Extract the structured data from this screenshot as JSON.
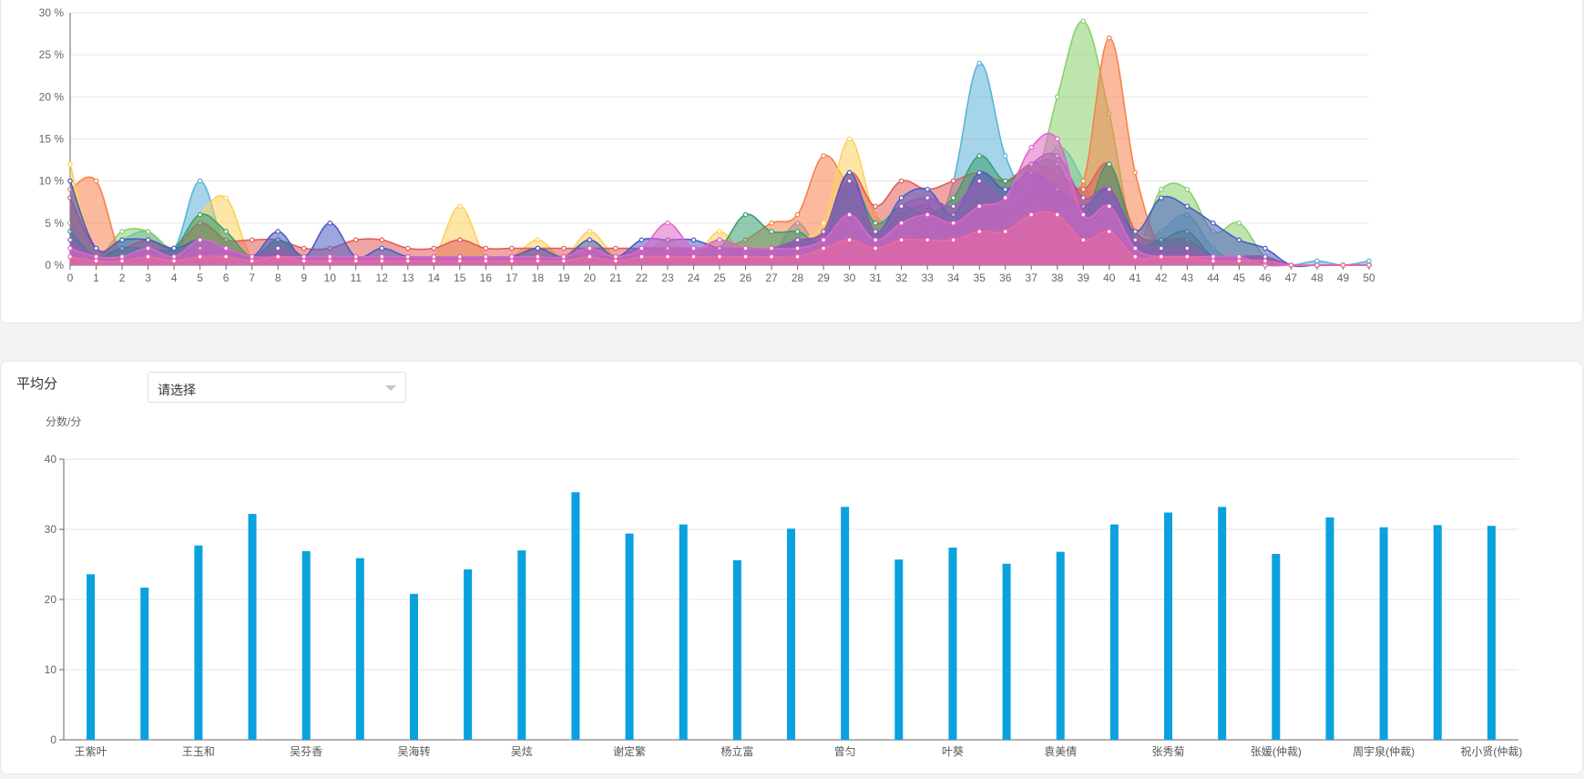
{
  "panels": {
    "average": {
      "label": "平均分",
      "select": {
        "value": "请选择"
      }
    }
  },
  "chart_data": [
    {
      "type": "area",
      "x": [
        0,
        1,
        2,
        3,
        4,
        5,
        6,
        7,
        8,
        9,
        10,
        11,
        12,
        13,
        14,
        15,
        16,
        17,
        18,
        19,
        20,
        21,
        22,
        23,
        24,
        25,
        26,
        27,
        28,
        29,
        30,
        31,
        32,
        33,
        34,
        35,
        36,
        37,
        38,
        39,
        40,
        41,
        42,
        43,
        44,
        45,
        46,
        47,
        48,
        49,
        50
      ],
      "ylim": [
        0,
        30
      ],
      "y_tick_labels": [
        "0 %",
        "5 %",
        "10 %",
        "15 %",
        "20 %",
        "25 %",
        "30 %"
      ],
      "y_ticks": [
        0,
        5,
        10,
        15,
        20,
        25,
        30
      ],
      "grid": true,
      "series": [
        {
          "color": "#5cb3d9",
          "values": [
            9,
            1,
            3,
            4,
            2,
            10,
            2,
            1,
            2,
            0.5,
            0.5,
            0.5,
            1,
            0.5,
            0.5,
            1,
            0.5,
            0.5,
            1,
            0.5,
            1,
            0.5,
            0.5,
            1,
            0.5,
            3,
            1,
            1,
            5,
            1,
            2,
            1,
            2,
            2,
            10,
            24,
            13,
            8,
            14,
            10,
            2,
            2,
            4,
            6,
            2,
            0.5,
            0.5,
            0,
            0.5,
            0,
            0.5
          ]
        },
        {
          "color": "#8bcf6e",
          "values": [
            5,
            1,
            4,
            4,
            2,
            5,
            3,
            1,
            3,
            1,
            1,
            1,
            1,
            1,
            1,
            1,
            1,
            1,
            2,
            1,
            2,
            1,
            1,
            2,
            1,
            2,
            1,
            1,
            2,
            3,
            4,
            2,
            4,
            4,
            4,
            8,
            6,
            8,
            20,
            29,
            18,
            3,
            9,
            9,
            4,
            5,
            1,
            0,
            0,
            0,
            0
          ]
        },
        {
          "color": "#f7814d",
          "values": [
            9,
            10,
            1,
            1,
            1,
            1,
            1,
            1,
            2,
            1,
            1,
            1,
            1,
            1,
            1,
            1,
            1,
            1,
            1,
            1,
            1,
            1,
            1,
            1,
            1,
            2,
            3,
            5,
            6,
            13,
            9,
            4,
            6,
            7,
            4,
            4,
            6,
            8,
            10,
            10,
            27,
            11,
            2,
            3,
            1,
            1,
            1,
            0,
            0,
            0,
            0
          ]
        },
        {
          "color": "#fcd15c",
          "values": [
            12,
            1,
            2,
            3,
            1,
            6,
            8,
            1,
            2,
            1,
            1,
            1,
            1,
            1,
            1,
            7,
            1,
            1,
            3,
            1,
            4,
            1,
            1,
            3,
            1,
            4,
            1,
            1,
            3,
            5,
            15,
            6,
            5,
            6,
            5,
            9,
            6,
            8,
            7,
            7,
            7,
            4,
            3,
            4,
            1,
            1,
            1,
            0,
            0,
            0,
            0
          ]
        },
        {
          "color": "#e45b5b",
          "values": [
            8,
            2,
            2,
            3,
            2,
            5,
            3,
            3,
            3,
            2,
            2,
            3,
            3,
            2,
            2,
            3,
            2,
            2,
            2,
            2,
            2,
            2,
            2,
            2,
            2,
            2,
            2,
            2,
            3,
            4,
            11,
            7,
            10,
            9,
            10,
            11,
            10,
            12,
            11,
            9,
            12,
            4,
            3,
            3,
            1,
            1,
            1,
            0,
            0,
            0,
            0
          ]
        },
        {
          "color": "#3a9e6f",
          "values": [
            4,
            1,
            2,
            2,
            2,
            6,
            4,
            1,
            3,
            1,
            1,
            1,
            1,
            1,
            1,
            1,
            1,
            1,
            1,
            1,
            1,
            1,
            1,
            1,
            1,
            2,
            6,
            4,
            4,
            3,
            10,
            5,
            7,
            6,
            8,
            13,
            10,
            12,
            12,
            6,
            12,
            3,
            3,
            4,
            1,
            1,
            1,
            0,
            0,
            0,
            0
          ]
        },
        {
          "color": "#4b5cc4",
          "values": [
            10,
            2,
            3,
            3,
            2,
            3,
            2,
            1,
            4,
            1,
            5,
            1,
            2,
            1,
            1,
            1,
            1,
            1,
            2,
            1,
            3,
            1,
            3,
            3,
            3,
            2,
            2,
            2,
            3,
            4,
            11,
            4,
            8,
            9,
            6,
            11,
            9,
            11,
            9,
            7,
            9,
            4,
            8,
            7,
            5,
            3,
            2,
            0,
            0,
            0,
            0
          ]
        },
        {
          "color": "#9b59b6",
          "values": [
            3,
            1,
            1,
            2,
            1,
            2,
            2,
            1,
            2,
            1,
            1,
            1,
            1,
            1,
            1,
            1,
            1,
            1,
            1,
            1,
            2,
            1,
            2,
            2,
            2,
            2,
            2,
            2,
            3,
            4,
            10,
            4,
            7,
            8,
            7,
            10,
            8,
            12,
            13,
            8,
            9,
            3,
            2,
            2,
            1,
            1,
            1,
            0,
            0,
            0,
            0
          ]
        },
        {
          "color": "#e066c9",
          "values": [
            2,
            1,
            1,
            2,
            1,
            3,
            2,
            1,
            1,
            1,
            1,
            1,
            1,
            1,
            1,
            1,
            1,
            1,
            1,
            1,
            2,
            1,
            2,
            5,
            2,
            3,
            2,
            2,
            2,
            3,
            6,
            3,
            5,
            6,
            5,
            7,
            8,
            14,
            15,
            6,
            7,
            2,
            1,
            1,
            1,
            1,
            0,
            0,
            0,
            0,
            0
          ]
        },
        {
          "color": "#ec6a9e",
          "values": [
            1,
            0.5,
            0.5,
            1,
            0.5,
            1,
            1,
            0.5,
            1,
            0.5,
            0.5,
            0.5,
            0.5,
            0.5,
            0.5,
            0.5,
            0.5,
            0.5,
            0.5,
            0.5,
            1,
            0.5,
            1,
            1,
            1,
            1,
            1,
            1,
            1,
            2,
            3,
            2,
            3,
            3,
            3,
            4,
            4,
            6,
            6,
            3,
            4,
            1,
            1,
            1,
            0.5,
            0.5,
            0.5,
            0,
            0,
            0,
            0
          ]
        }
      ]
    },
    {
      "type": "bar",
      "ylabel": "分数/分",
      "ylim": [
        0,
        40
      ],
      "y_ticks": [
        0,
        10,
        20,
        30,
        40
      ],
      "grid": true,
      "color": "#0aa1de",
      "categories": [
        "王紫叶",
        "",
        "王玉和",
        "",
        "吴芬香",
        "",
        "吴海转",
        "",
        "吴炫",
        "",
        "谢定繁",
        "",
        "杨立富",
        "",
        "曾匀",
        "",
        "叶葵",
        "",
        "袁美倩",
        "",
        "张秀菊",
        "",
        "张媛(仲裁)",
        "",
        "周宇泉(仲裁)",
        "",
        "祝小贤(仲裁)"
      ],
      "values": [
        23.6,
        21.7,
        27.7,
        32.2,
        26.9,
        25.9,
        20.8,
        24.3,
        27,
        35.3,
        29.4,
        30.7,
        25.6,
        30.1,
        33.2,
        25.7,
        27.4,
        25.1,
        26.8,
        30.7,
        32.4,
        33.2,
        26.5,
        31.7,
        30.3,
        30.6,
        30.5
      ]
    }
  ]
}
